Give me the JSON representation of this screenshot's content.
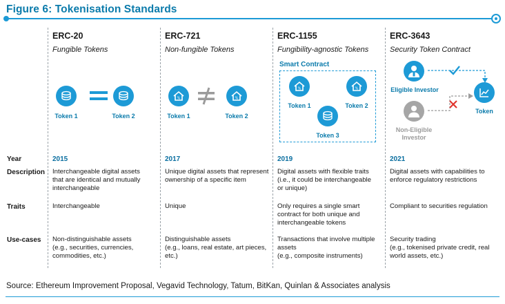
{
  "title": "Figure 6: Tokenisation Standards",
  "columns": [
    {
      "name": "ERC-20",
      "subtitle": "Fungible Tokens"
    },
    {
      "name": "ERC-721",
      "subtitle": "Non-fungible Tokens"
    },
    {
      "name": "ERC-1155",
      "subtitle": "Fungibility-agnostic Tokens"
    },
    {
      "name": "ERC-3643",
      "subtitle": "Security Token Contract"
    }
  ],
  "diagrams": {
    "erc20": {
      "token1": "Token 1",
      "token2": "Token 2",
      "relation_icon": "equals-icon"
    },
    "erc721": {
      "token1": "Token 1",
      "token2": "Token 2",
      "relation_icon": "not-equal-icon"
    },
    "erc1155": {
      "box_title": "Smart Contract",
      "token1": "Token 1",
      "token2": "Token 2",
      "token3": "Token 3"
    },
    "erc3643": {
      "eligible": "Eligible Investor",
      "non_eligible_line1": "Non-Eligible",
      "non_eligible_line2": "Investor",
      "token": "Token"
    }
  },
  "row_labels": {
    "year": "Year",
    "description": "Description",
    "traits": "Traits",
    "use_cases": "Use-cases"
  },
  "rows": {
    "year": [
      "2015",
      "2017",
      "2019",
      "2021"
    ],
    "description": [
      [
        "Interchangeable digital assets",
        "that are identical and mutually",
        "interchangeable"
      ],
      [
        "Unique digital assets that represent",
        "ownership of a specific item"
      ],
      [
        "Digital assets with flexible traits",
        "(i.e., it could be interchangeable",
        "or unique)"
      ],
      [
        "Digital assets with capabilities to",
        "enforce regulatory restrictions"
      ]
    ],
    "traits": [
      [
        "Interchangeable"
      ],
      [
        "Unique"
      ],
      [
        "Only requires a single smart",
        "contract for both unique and",
        "interchangeable tokens"
      ],
      [
        "Compliant to securities regulation"
      ]
    ],
    "use_cases": [
      [
        "Non-distinguishable assets",
        "(e.g., securities, currencies,",
        "commodities, etc.)"
      ],
      [
        "Distinguishable assets",
        "(e.g., loans, real estate, art pieces,",
        "etc.)"
      ],
      [
        "Transactions that involve multiple",
        "assets",
        "(e.g., composite instruments)"
      ],
      [
        "Security trading",
        "(e.g., tokenised private credit, real",
        "world assets, etc.)"
      ]
    ]
  },
  "source": "Source: Ethereum Improvement Proposal, Vegavid Technology, Tatum, BitKan, Quinlan & Associates analysis",
  "colors": {
    "accent": "#1d9ad6",
    "title": "#0b7bab",
    "check": "#1d9ad6",
    "cross": "#e0362f",
    "grey": "#9b9b9b"
  }
}
